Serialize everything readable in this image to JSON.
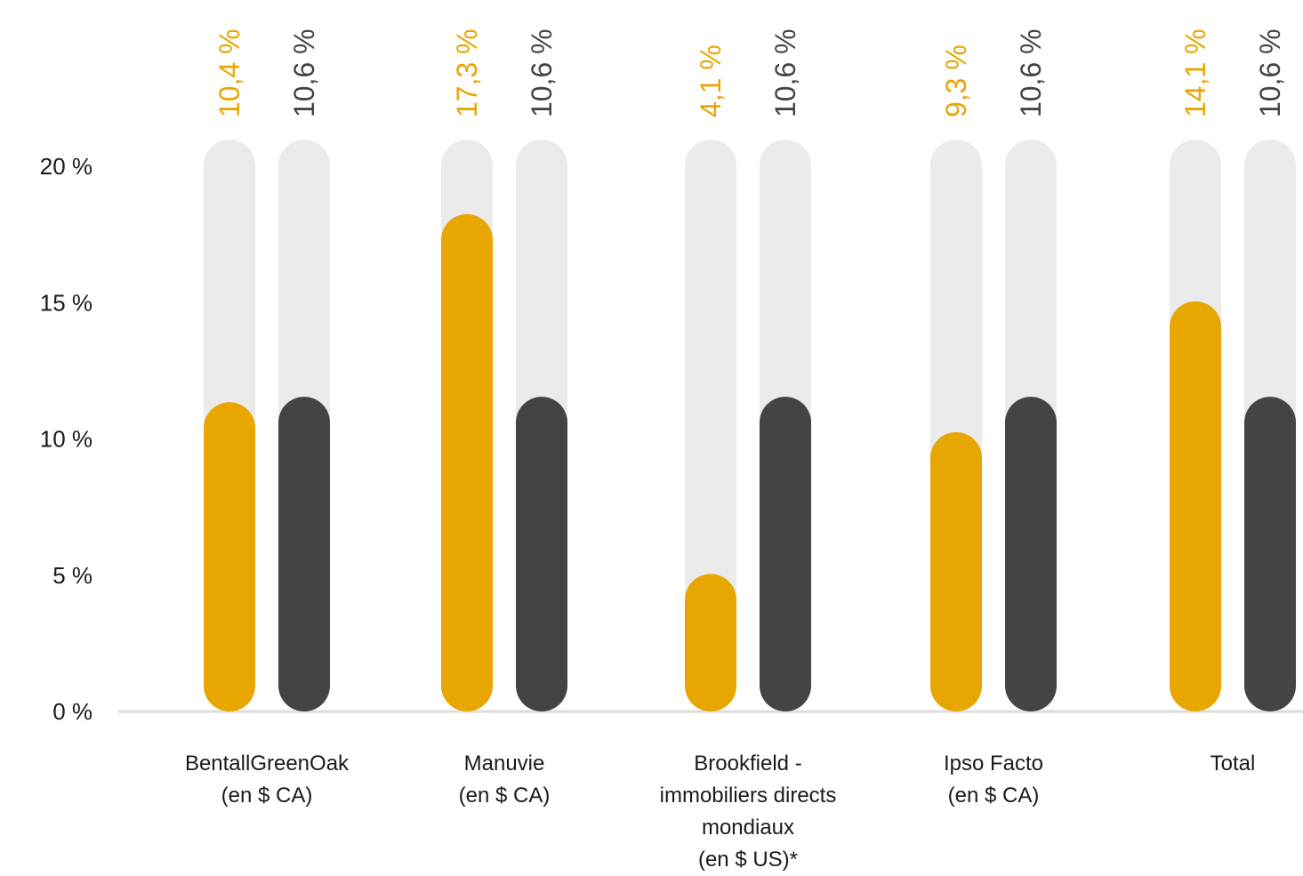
{
  "chart_data": {
    "type": "bar",
    "categories": [
      [
        "BentallGreenOak",
        "(en $ CA)"
      ],
      [
        "Manuvie",
        "(en $ CA)"
      ],
      [
        "Brookfield -",
        "immobiliers directs",
        "mondiaux",
        "(en $ US)*"
      ],
      [
        "Ipso Facto",
        "(en $ CA)"
      ],
      [
        "Total"
      ]
    ],
    "series": [
      {
        "color": "#e8a600",
        "values": [
          10.4,
          17.3,
          4.1,
          9.3,
          14.1
        ],
        "labels": [
          "10,4 %",
          "17,3 %",
          "4,1 %",
          "9,3 %",
          "14,1 %"
        ]
      },
      {
        "color": "#444444",
        "values": [
          10.6,
          10.6,
          10.6,
          10.6,
          10.6
        ],
        "labels": [
          "10,6 %",
          "10,6 %",
          "10,6 %",
          "10,6 %",
          "10,6 %"
        ]
      }
    ],
    "track_color": "#ebebeb",
    "ylim": [
      0,
      20
    ],
    "yticks": [
      {
        "value": 0,
        "label": "0 %"
      },
      {
        "value": 5,
        "label": "5 %"
      },
      {
        "value": 10,
        "label": "10 %"
      },
      {
        "value": 15,
        "label": "15 %"
      },
      {
        "value": 20,
        "label": "20 %"
      }
    ],
    "grid": false,
    "legend": "none"
  }
}
